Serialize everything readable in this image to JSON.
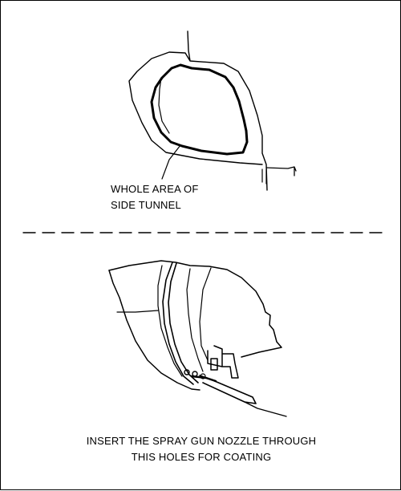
{
  "top_figure": {
    "callout_line1": "WHOLE AREA OF",
    "callout_line2": "SIDE TUNNEL"
  },
  "bottom_figure": {
    "caption_line1": "INSERT THE SPRAY GUN NOZZLE THROUGH",
    "caption_line2": "THIS HOLES FOR COATING"
  },
  "colors": {
    "line": "#000000",
    "background": "#ffffff"
  }
}
